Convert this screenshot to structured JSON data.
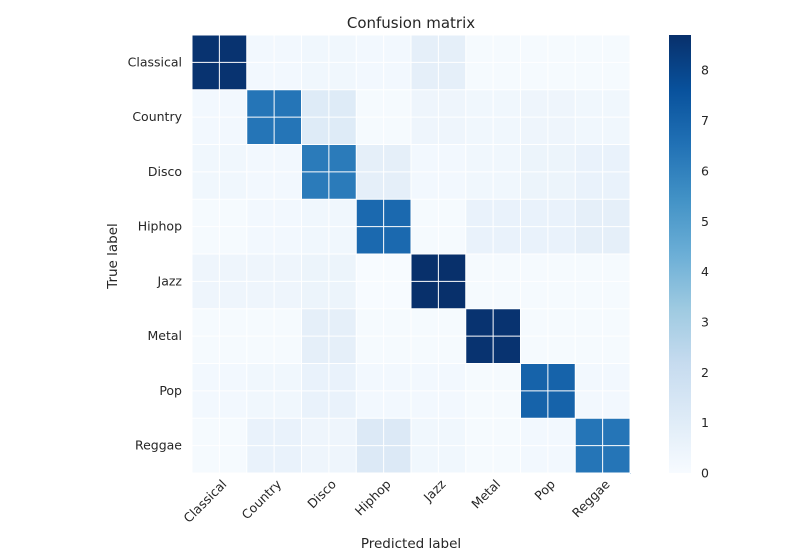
{
  "chart_data": {
    "type": "heatmap",
    "title": "Confusion matrix",
    "xlabel": "Predicted label",
    "ylabel": "True label",
    "labels": [
      "Classical",
      "Country",
      "Disco",
      "Hiphop",
      "Jazz",
      "Metal",
      "Pop",
      "Reggae"
    ],
    "values": [
      [
        8.6,
        0.2,
        0.3,
        0.2,
        0.8,
        0.1,
        0.1,
        0.1
      ],
      [
        0.2,
        6.4,
        1.1,
        0.1,
        0.4,
        0.3,
        0.4,
        0.3
      ],
      [
        0.3,
        0.2,
        6.2,
        0.8,
        0.2,
        0.3,
        0.5,
        0.6
      ],
      [
        0.1,
        0.2,
        0.3,
        6.8,
        0.1,
        0.6,
        0.6,
        0.8
      ],
      [
        0.4,
        0.4,
        0.5,
        0.0,
        8.7,
        0.1,
        0.1,
        0.1
      ],
      [
        0.1,
        0.1,
        0.8,
        0.1,
        0.1,
        8.6,
        0.1,
        0.1
      ],
      [
        0.2,
        0.3,
        0.6,
        0.2,
        0.2,
        0.1,
        7.0,
        0.2
      ],
      [
        0.1,
        0.6,
        0.4,
        1.2,
        0.3,
        0.1,
        0.2,
        6.4
      ]
    ],
    "colorbar": {
      "min": 0,
      "max": 8.7,
      "ticks": [
        0,
        1,
        2,
        3,
        4,
        5,
        6,
        7,
        8
      ],
      "colormap": "Blues"
    },
    "grid": true
  }
}
